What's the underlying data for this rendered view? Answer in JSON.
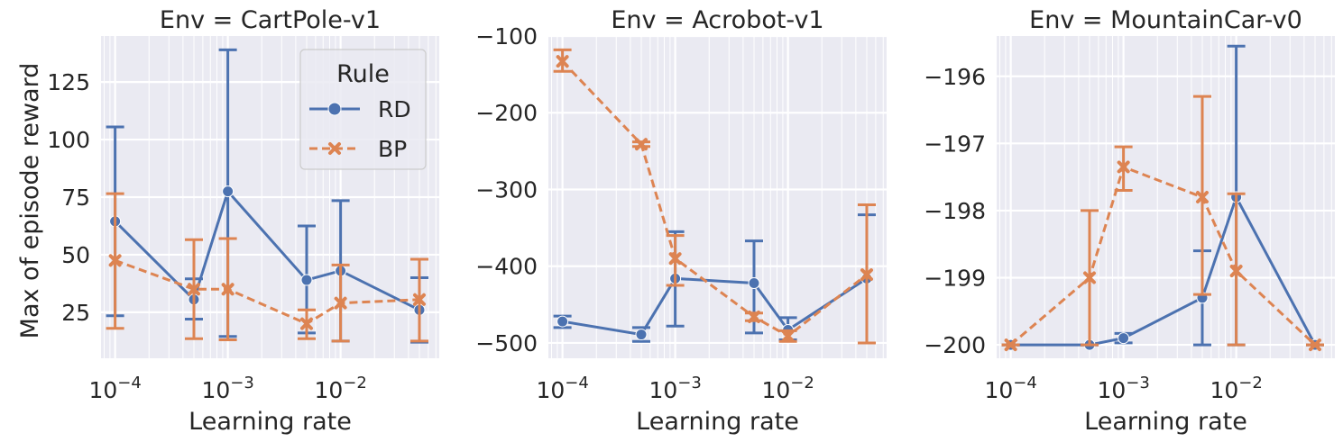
{
  "figure": {
    "ylabel": "Max of episode reward",
    "xlabel": "Learning rate",
    "legend": {
      "title": "Rule",
      "placement": "top-right",
      "panel": 0,
      "entries": [
        {
          "label": "RD",
          "color": "#4c72b0",
          "marker": "circle",
          "dash": "solid"
        },
        {
          "label": "BP",
          "color": "#dd8452",
          "marker": "x",
          "dash": "dashed"
        }
      ]
    },
    "background": "#eaeaf2",
    "grid": true
  },
  "chart_data": [
    {
      "type": "line",
      "title": "Env = CartPole-v1",
      "xscale": "log",
      "x": [
        0.0001,
        0.0005,
        0.001,
        0.005,
        0.01,
        0.05
      ],
      "xlim": [
        7.5e-05,
        0.075
      ],
      "xticks": [
        {
          "value": 0.0001,
          "base": "10",
          "exp": "−4"
        },
        {
          "value": 0.001,
          "base": "10",
          "exp": "−3"
        },
        {
          "value": 0.01,
          "base": "10",
          "exp": "−2"
        }
      ],
      "ylim": [
        5,
        145
      ],
      "yticks": [
        {
          "value": 25,
          "label": "25"
        },
        {
          "value": 50,
          "label": "50"
        },
        {
          "value": 75,
          "label": "75"
        },
        {
          "value": 100,
          "label": "100"
        },
        {
          "value": 125,
          "label": "125"
        }
      ],
      "series": [
        {
          "name": "RD",
          "values": [
            64.5,
            30.5,
            77.5,
            39,
            43,
            26
          ],
          "lower": [
            23.5,
            22,
            14.5,
            16,
            12.5,
            12
          ],
          "upper": [
            105.5,
            39.5,
            139,
            62.5,
            73.5,
            40
          ]
        },
        {
          "name": "BP",
          "values": [
            47.5,
            35,
            35,
            20,
            29,
            30.5
          ],
          "lower": [
            18,
            13.5,
            13,
            13.5,
            12.5,
            12.5
          ],
          "upper": [
            76.5,
            56.5,
            57,
            26,
            45.5,
            48
          ]
        }
      ]
    },
    {
      "type": "line",
      "title": "Env = Acrobot-v1",
      "xscale": "log",
      "x": [
        0.0001,
        0.0005,
        0.001,
        0.005,
        0.01,
        0.05
      ],
      "xlim": [
        7.5e-05,
        0.075
      ],
      "xticks": [
        {
          "value": 0.0001,
          "base": "10",
          "exp": "−4"
        },
        {
          "value": 0.001,
          "base": "10",
          "exp": "−3"
        },
        {
          "value": 0.01,
          "base": "10",
          "exp": "−2"
        }
      ],
      "ylim": [
        -520,
        -100
      ],
      "yticks": [
        {
          "value": -500,
          "label": "−500"
        },
        {
          "value": -400,
          "label": "−400"
        },
        {
          "value": -300,
          "label": "−300"
        },
        {
          "value": -200,
          "label": "−200"
        },
        {
          "value": -100,
          "label": "−100"
        }
      ],
      "series": [
        {
          "name": "RD",
          "values": [
            -472,
            -489,
            -416,
            -422,
            -483,
            -416
          ],
          "lower": [
            -480,
            -498,
            -478,
            -487,
            -496,
            -500
          ],
          "upper": [
            -465,
            -480,
            -355,
            -367,
            -467,
            -333
          ]
        },
        {
          "name": "BP",
          "values": [
            -133,
            -241,
            -390,
            -466,
            -491,
            -411
          ],
          "lower": [
            -146,
            -244,
            -425,
            -471,
            -498,
            -500
          ],
          "upper": [
            -118,
            -238,
            -360,
            -461,
            -484,
            -320
          ]
        }
      ]
    },
    {
      "type": "line",
      "title": "Env = MountainCar-v0",
      "xscale": "log",
      "x": [
        0.0001,
        0.0005,
        0.001,
        0.005,
        0.01,
        0.05
      ],
      "xlim": [
        7.5e-05,
        0.075
      ],
      "xticks": [
        {
          "value": 0.0001,
          "base": "10",
          "exp": "−4"
        },
        {
          "value": 0.001,
          "base": "10",
          "exp": "−3"
        },
        {
          "value": 0.01,
          "base": "10",
          "exp": "−2"
        }
      ],
      "ylim": [
        -200.2,
        -195.4
      ],
      "yticks": [
        {
          "value": -200,
          "label": "−200"
        },
        {
          "value": -199,
          "label": "−199"
        },
        {
          "value": -198,
          "label": "−198"
        },
        {
          "value": -197,
          "label": "−197"
        },
        {
          "value": -196,
          "label": "−196"
        }
      ],
      "series": [
        {
          "name": "RD",
          "values": [
            -200,
            -200,
            -199.9,
            -199.3,
            -197.8,
            -200
          ],
          "lower": [
            -200,
            -200,
            -199.97,
            -200,
            -200,
            -200
          ],
          "upper": [
            -200,
            -200,
            -199.83,
            -198.6,
            -195.55,
            -200
          ]
        },
        {
          "name": "BP",
          "values": [
            -200,
            -199,
            -197.35,
            -197.8,
            -198.9,
            -200
          ],
          "lower": [
            -200,
            -200,
            -197.7,
            -199.25,
            -200,
            -200
          ],
          "upper": [
            -200,
            -198,
            -197.05,
            -196.3,
            -197.75,
            -200
          ]
        }
      ]
    }
  ]
}
